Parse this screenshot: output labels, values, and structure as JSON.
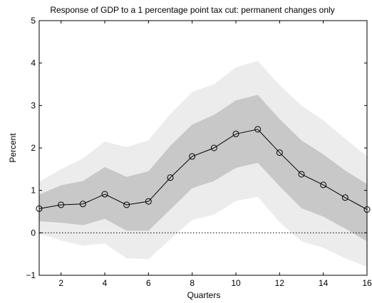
{
  "chart_data": {
    "type": "line",
    "title": "Response of GDP to a 1 percentage point tax cut: permanent changes only",
    "xlabel": "Quarters",
    "ylabel": "Percent",
    "xlim": [
      1,
      16
    ],
    "ylim": [
      -1,
      5
    ],
    "xticks": [
      2,
      4,
      6,
      8,
      10,
      12,
      14,
      16
    ],
    "yticks": [
      -1,
      0,
      1,
      2,
      3,
      4,
      5
    ],
    "ytick_labels": [
      "−1",
      "0",
      "1",
      "2",
      "3",
      "4",
      "5"
    ],
    "grid": false,
    "zero_line": {
      "y": 0,
      "style": "dotted"
    },
    "x": [
      1,
      2,
      3,
      4,
      5,
      6,
      7,
      8,
      9,
      10,
      11,
      12,
      13,
      14,
      15,
      16
    ],
    "series": [
      {
        "values": [
          0.57,
          0.66,
          0.68,
          0.91,
          0.66,
          0.74,
          1.3,
          1.8,
          2.0,
          2.33,
          2.44,
          1.89,
          1.38,
          1.13,
          0.83,
          0.55
        ],
        "marker": "circle",
        "color": "#000000"
      }
    ],
    "bands": [
      {
        "lower": [
          -0.02,
          -0.18,
          -0.3,
          -0.25,
          -0.6,
          -0.62,
          -0.15,
          0.3,
          0.43,
          0.75,
          0.85,
          0.25,
          -0.2,
          -0.35,
          -0.6,
          -0.8
        ],
        "upper": [
          1.2,
          1.5,
          1.75,
          2.15,
          2.02,
          2.18,
          2.8,
          3.32,
          3.5,
          3.9,
          4.05,
          3.48,
          3.0,
          2.65,
          2.22,
          1.8
        ],
        "color": "#ececec"
      },
      {
        "lower": [
          0.27,
          0.24,
          0.18,
          0.33,
          0.05,
          0.05,
          0.55,
          1.05,
          1.22,
          1.53,
          1.65,
          1.1,
          0.58,
          0.38,
          0.1,
          -0.2
        ],
        "upper": [
          0.9,
          1.12,
          1.22,
          1.55,
          1.32,
          1.45,
          2.05,
          2.55,
          2.78,
          3.12,
          3.25,
          2.68,
          2.18,
          1.85,
          1.47,
          1.15
        ],
        "color": "#c8c8c8"
      }
    ]
  }
}
